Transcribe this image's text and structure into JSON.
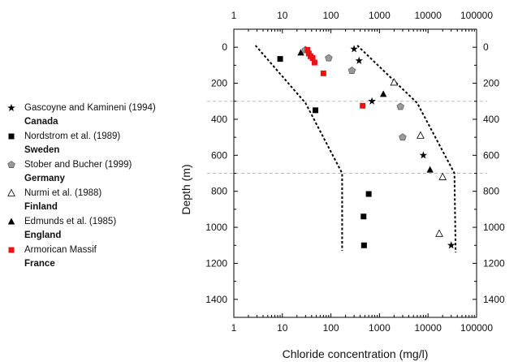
{
  "chart_data": {
    "type": "scatter",
    "xlabel": "Chloride concentration (mg/l)",
    "ylabel": "Depth (m)",
    "xscale": "log",
    "xlim": [
      1,
      100000
    ],
    "ylim": [
      1500,
      -100
    ],
    "x_ticks": [
      "1",
      "10",
      "100",
      "1000",
      "10000",
      "100000"
    ],
    "y_ticks": [
      "0",
      "200",
      "400",
      "600",
      "800",
      "1000",
      "1200",
      "1400"
    ],
    "legend_position": "left",
    "series": [
      {
        "name": "Gascoyne and Kamineni (1994)",
        "country": "Canada",
        "marker": "star",
        "color": "#000000",
        "points": [
          [
            300,
            10
          ],
          [
            380,
            75
          ],
          [
            700,
            300
          ],
          [
            8000,
            600
          ],
          [
            30000,
            1100
          ]
        ]
      },
      {
        "name": "Nordstrom et al. (1989)",
        "country": "Sweden",
        "marker": "square",
        "color": "#000000",
        "points": [
          [
            9,
            65
          ],
          [
            48,
            350
          ],
          [
            600,
            815
          ],
          [
            470,
            940
          ],
          [
            480,
            1100
          ]
        ]
      },
      {
        "name": "Stober and Bucher (1999)",
        "country": "Germany",
        "marker": "pentagon",
        "color": "#9a9a9a",
        "points": [
          [
            30,
            15
          ],
          [
            90,
            60
          ],
          [
            270,
            130
          ],
          [
            2700,
            330
          ],
          [
            3000,
            500
          ]
        ]
      },
      {
        "name": "Nurmi et al. (1988)",
        "country": "Finland",
        "marker": "triangle-open",
        "color": "#000000",
        "points": [
          [
            2000,
            195
          ],
          [
            7000,
            490
          ],
          [
            20000,
            720
          ],
          [
            17000,
            1035
          ]
        ]
      },
      {
        "name": "Edmunds et al. (1985)",
        "country": "England",
        "marker": "triangle",
        "color": "#000000",
        "points": [
          [
            24,
            30
          ],
          [
            1200,
            260
          ],
          [
            11000,
            680
          ]
        ]
      },
      {
        "name": "Armorican Massif",
        "country": "France",
        "marker": "square",
        "color": "#ee1111",
        "points": [
          [
            33,
            15
          ],
          [
            35,
            35
          ],
          [
            38,
            50
          ],
          [
            42,
            60
          ],
          [
            46,
            85
          ],
          [
            70,
            145
          ],
          [
            450,
            325
          ]
        ]
      }
    ],
    "envelope": {
      "left": [
        [
          2.8,
          -10
        ],
        [
          30,
          310
        ],
        [
          170,
          700
        ],
        [
          170,
          1130
        ]
      ],
      "right": [
        [
          350,
          -10
        ],
        [
          6000,
          310
        ],
        [
          35000,
          700
        ],
        [
          37000,
          1140
        ]
      ]
    },
    "reference_lines_depth": [
      300,
      700
    ],
    "colors": {
      "envelope": "#000000",
      "reference_lines": "#bbbbbb",
      "axis": "#000000"
    }
  }
}
